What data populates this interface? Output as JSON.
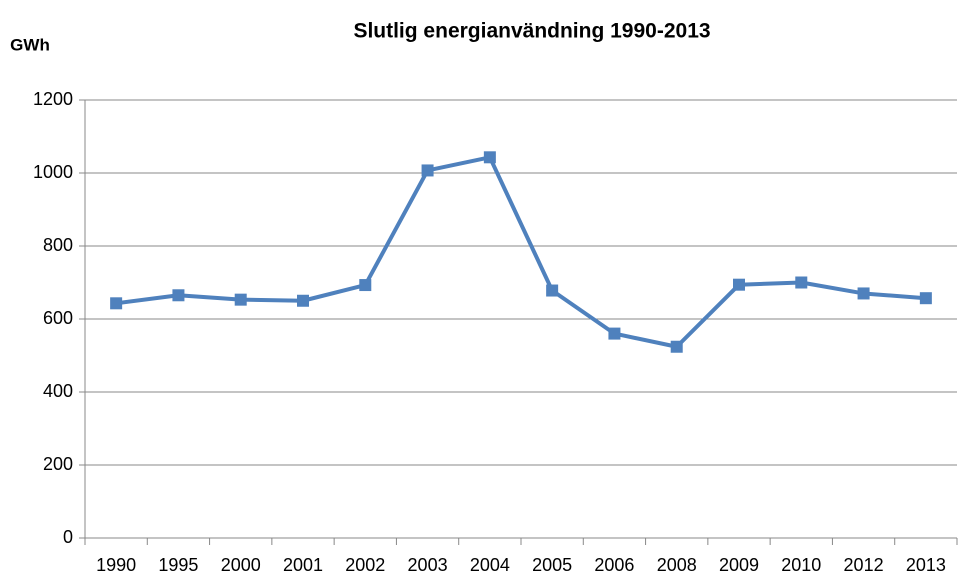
{
  "chart_data": {
    "type": "line",
    "title": "Slutlig energianvändning 1990-2013",
    "y_label": "GWh",
    "categories": [
      "1990",
      "1995",
      "2000",
      "2001",
      "2002",
      "2003",
      "2004",
      "2005",
      "2006",
      "2008",
      "2009",
      "2010",
      "2012",
      "2013"
    ],
    "series": [
      {
        "name": "Slutlig energianvändning",
        "color": "#4f81bd",
        "values": [
          643,
          665,
          653,
          650,
          693,
          1007,
          1043,
          678,
          560,
          524,
          694,
          700,
          670,
          657
        ]
      }
    ],
    "ylim": [
      0,
      1200
    ],
    "yticks": [
      0,
      200,
      400,
      600,
      800,
      1000,
      1200
    ],
    "grid": true,
    "legend": false
  }
}
